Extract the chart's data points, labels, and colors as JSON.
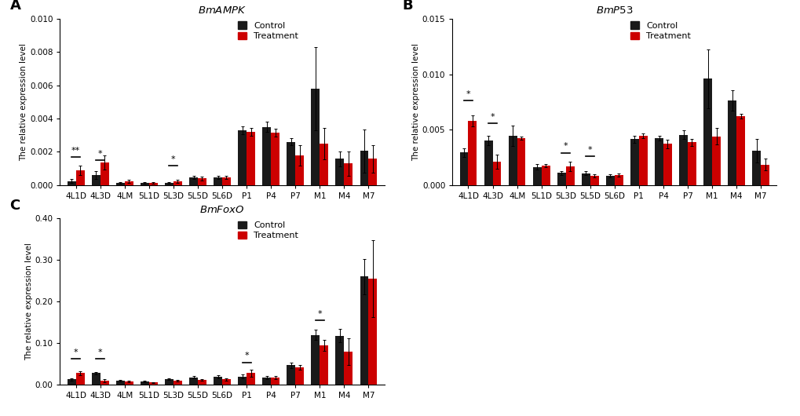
{
  "categories": [
    "4L1D",
    "4L3D",
    "4LM",
    "5L1D",
    "5L3D",
    "5L5D",
    "5L6D",
    "P1",
    "P4",
    "P7",
    "M1",
    "M4",
    "M7"
  ],
  "panel_A": {
    "title": "BmAMPK",
    "ylabel": "The relative expression level",
    "ylim": [
      0,
      0.01
    ],
    "yticks": [
      0.0,
      0.002,
      0.004,
      0.006,
      0.008,
      0.01
    ],
    "control": [
      0.00025,
      0.0006,
      0.00015,
      0.00012,
      0.00012,
      0.00048,
      0.00048,
      0.0033,
      0.0035,
      0.0026,
      0.0058,
      0.00158,
      0.00205
    ],
    "treatment": [
      0.0009,
      0.00135,
      0.00022,
      0.00015,
      0.00022,
      0.0004,
      0.00048,
      0.0032,
      0.00315,
      0.0018,
      0.0025,
      0.0013,
      0.00158
    ],
    "control_err": [
      0.00012,
      0.00022,
      5e-05,
      5e-05,
      5e-05,
      0.0001,
      0.0001,
      0.00025,
      0.00032,
      0.00022,
      0.0025,
      0.00045,
      0.0013
    ],
    "treatment_err": [
      0.00028,
      0.00042,
      8e-05,
      5e-05,
      8e-05,
      0.00012,
      0.0001,
      0.00022,
      0.00022,
      0.00062,
      0.00095,
      0.00072,
      0.00082
    ],
    "sig_stars": [
      "**",
      "*",
      "",
      "",
      "*",
      "",
      "",
      "",
      "",
      "",
      "",
      "",
      ""
    ],
    "sig_heights": [
      0.0017,
      0.00148,
      0,
      0,
      0.00118,
      0,
      0,
      0,
      0,
      0,
      0,
      0,
      0
    ]
  },
  "panel_B": {
    "title": "BmP53",
    "ylabel": "The relative expression level",
    "ylim": [
      0,
      0.015
    ],
    "yticks": [
      0.0,
      0.005,
      0.01,
      0.015
    ],
    "control": [
      0.00295,
      0.00405,
      0.00445,
      0.00165,
      0.0011,
      0.00108,
      0.00085,
      0.00415,
      0.00425,
      0.00455,
      0.0096,
      0.00765,
      0.0031
    ],
    "treatment": [
      0.0058,
      0.0021,
      0.00425,
      0.00178,
      0.00168,
      0.00082,
      0.0009,
      0.00445,
      0.00372,
      0.00385,
      0.0044,
      0.0062,
      0.00185
    ],
    "control_err": [
      0.00038,
      0.00042,
      0.0009,
      0.00022,
      0.00018,
      0.00018,
      0.00012,
      0.00032,
      0.00022,
      0.00042,
      0.00265,
      0.00092,
      0.00105
    ],
    "treatment_err": [
      0.00048,
      0.00062,
      0.00015,
      0.00015,
      0.00042,
      0.00015,
      0.00012,
      0.00022,
      0.00038,
      0.0003,
      0.00072,
      0.0002,
      0.00055
    ],
    "sig_stars": [
      "*",
      "*",
      "",
      "",
      "*",
      "*",
      "",
      "",
      "",
      "",
      "",
      "",
      ""
    ],
    "sig_heights": [
      0.0076,
      0.00555,
      0,
      0,
      0.00292,
      0.00258,
      0,
      0,
      0,
      0,
      0,
      0,
      0
    ]
  },
  "panel_C": {
    "title": "BmFoxO",
    "ylabel": "The relative expression level",
    "ylim": [
      0,
      0.4
    ],
    "yticks": [
      0.0,
      0.1,
      0.2,
      0.3,
      0.4
    ],
    "control": [
      0.013,
      0.028,
      0.01,
      0.008,
      0.013,
      0.018,
      0.02,
      0.02,
      0.018,
      0.047,
      0.12,
      0.118,
      0.26
    ],
    "treatment": [
      0.028,
      0.01,
      0.008,
      0.006,
      0.01,
      0.012,
      0.013,
      0.028,
      0.018,
      0.042,
      0.095,
      0.08,
      0.255
    ],
    "control_err": [
      0.003,
      0.003,
      0.002,
      0.001,
      0.002,
      0.003,
      0.004,
      0.005,
      0.004,
      0.006,
      0.012,
      0.016,
      0.042
    ],
    "treatment_err": [
      0.005,
      0.003,
      0.002,
      0.001,
      0.002,
      0.002,
      0.003,
      0.008,
      0.004,
      0.005,
      0.013,
      0.032,
      0.092
    ],
    "sig_stars": [
      "*",
      "*",
      "",
      "",
      "",
      "",
      "",
      "*",
      "",
      "",
      "*",
      "",
      ""
    ],
    "sig_heights": [
      0.062,
      0.063,
      0,
      0,
      0,
      0,
      0,
      0.054,
      0,
      0,
      0.155,
      0,
      0
    ]
  },
  "control_color": "#1a1a1a",
  "treatment_color": "#cc0000",
  "bar_width": 0.35,
  "label_fontsize": 7.5,
  "title_fontsize": 9.5,
  "tick_fontsize": 7.5,
  "legend_fontsize": 8,
  "sig_fontsize": 8
}
